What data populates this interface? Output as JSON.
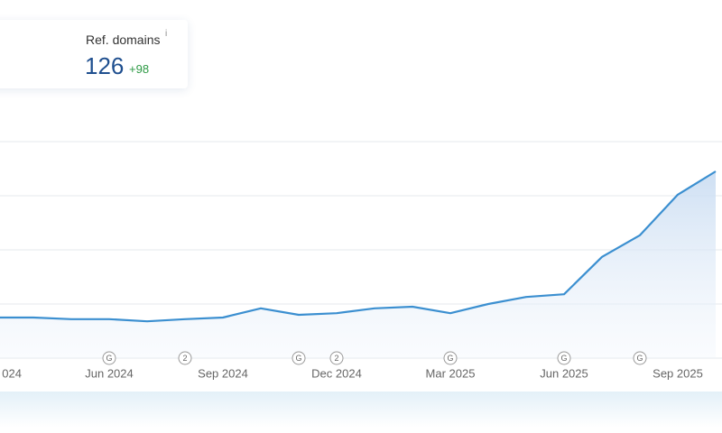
{
  "card": {
    "label": "Ref. domains",
    "info": "i",
    "value": "126",
    "delta": "+98"
  },
  "chart_data": {
    "type": "line",
    "categories": [
      "024",
      null,
      null,
      "Jun 2024",
      null,
      null,
      "Sep 2024",
      null,
      null,
      "Dec 2024",
      null,
      null,
      "Mar 2025",
      null,
      null,
      "Jun 2025",
      null,
      null,
      "Sep 2025",
      null
    ],
    "series": [
      {
        "color": "#3b8fd0",
        "values": [
          0.75,
          0.75,
          0.72,
          0.72,
          0.68,
          0.72,
          0.75,
          0.92,
          0.8,
          0.83,
          0.92,
          0.95,
          0.83,
          1.0,
          1.13,
          1.18,
          1.87,
          2.27,
          3.02,
          3.45
        ]
      }
    ],
    "ylim": [
      0,
      4
    ],
    "yticks": [
      0,
      1,
      2,
      3,
      4
    ],
    "grid": true,
    "events": [
      {
        "x": 3,
        "label": "G"
      },
      {
        "x": 5,
        "label": "2"
      },
      {
        "x": 8,
        "label": "G"
      },
      {
        "x": 9,
        "label": "2"
      },
      {
        "x": 12,
        "label": "G"
      },
      {
        "x": 15,
        "label": "G"
      },
      {
        "x": 17,
        "label": "G"
      }
    ]
  }
}
